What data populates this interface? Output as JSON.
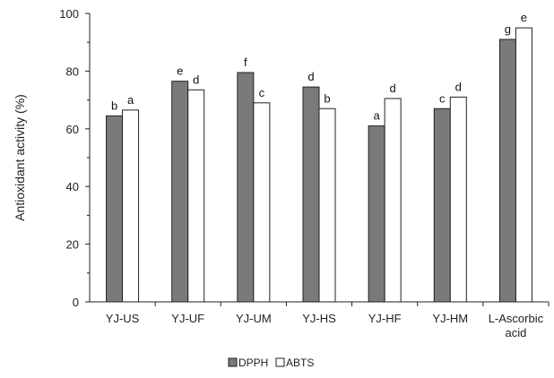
{
  "chart_data": {
    "type": "bar",
    "ylabel": "Antioxidant activity (%)",
    "xlabel": "",
    "ylim": [
      0,
      100
    ],
    "yticks": [
      0,
      20,
      40,
      60,
      80,
      100
    ],
    "grid": false,
    "legend_position": "bottom-center",
    "categories": [
      [
        "YJ-US"
      ],
      [
        "YJ-UF"
      ],
      [
        "YJ-UM"
      ],
      [
        "YJ-HS"
      ],
      [
        "YJ-HF"
      ],
      [
        "YJ-HM"
      ],
      [
        "L-Ascorbic",
        "acid"
      ]
    ],
    "series": [
      {
        "name": "DPPH",
        "color": "#7a7a7a",
        "values": [
          64.5,
          76.5,
          79.5,
          74.5,
          61.0,
          67.0,
          91.0
        ],
        "labels": [
          "b",
          "e",
          "f",
          "d",
          "a",
          "c",
          "g"
        ]
      },
      {
        "name": "ABTS",
        "color": "#ffffff",
        "values": [
          66.5,
          73.5,
          69.0,
          67.0,
          70.5,
          71.0,
          95.0
        ],
        "labels": [
          "a",
          "d",
          "c",
          "b",
          "d",
          "d",
          "e"
        ]
      }
    ]
  }
}
